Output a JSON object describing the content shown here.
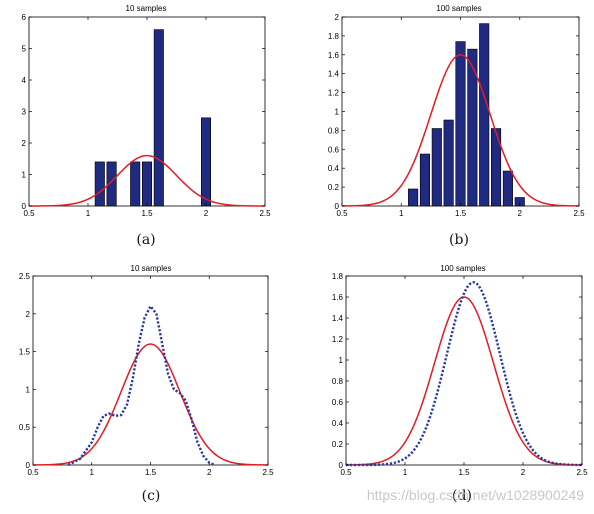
{
  "chart_data": [
    {
      "id": "a",
      "type": "bar",
      "title": "10 samples",
      "caption": "(a)",
      "xlim": [
        0.5,
        2.5
      ],
      "ylim": [
        0,
        6
      ],
      "xticks": [
        0.5,
        1,
        1.5,
        2,
        2.5
      ],
      "xtick_labels": [
        "0.5",
        "1",
        "1.5",
        "2",
        "2.5"
      ],
      "yticks": [
        0,
        1,
        2,
        3,
        4,
        5,
        6
      ],
      "ytick_labels": [
        "0",
        "1",
        "2",
        "3",
        "4",
        "5",
        "6"
      ],
      "bar_width": 0.08,
      "bars": {
        "x": [
          1.1,
          1.2,
          1.4,
          1.5,
          1.6,
          2.0
        ],
        "values": [
          1.4,
          1.4,
          1.4,
          1.4,
          5.6,
          2.8
        ]
      },
      "series": [
        {
          "type": "line",
          "style": "solid",
          "color": "#e31b23",
          "curve": {
            "kind": "gaussian",
            "mean": 1.5,
            "sd": 0.25,
            "peak": 1.6
          }
        }
      ],
      "grid": false,
      "bar_color": "#1f2a80"
    },
    {
      "id": "b",
      "type": "bar",
      "title": "100 samples",
      "caption": "(b)",
      "xlim": [
        0.5,
        2.5
      ],
      "ylim": [
        0,
        2
      ],
      "xticks": [
        0.5,
        1,
        1.5,
        2,
        2.5
      ],
      "xtick_labels": [
        "0.5",
        "1",
        "1.5",
        "2",
        "2.5"
      ],
      "yticks": [
        0,
        0.2,
        0.4,
        0.6,
        0.8,
        1,
        1.2,
        1.4,
        1.6,
        1.8,
        2
      ],
      "ytick_labels": [
        "0",
        "0.2",
        "0.4",
        "0.6",
        "0.8",
        "1",
        "1.2",
        "1.4",
        "1.6",
        "1.8",
        "2"
      ],
      "bar_width": 0.08,
      "bars": {
        "x": [
          1.1,
          1.2,
          1.3,
          1.4,
          1.5,
          1.6,
          1.7,
          1.8,
          1.9,
          2.0
        ],
        "values": [
          0.18,
          0.55,
          0.82,
          0.91,
          1.74,
          1.66,
          1.93,
          0.82,
          0.37,
          0.09
        ]
      },
      "series": [
        {
          "type": "line",
          "style": "solid",
          "color": "#e31b23",
          "curve": {
            "kind": "gaussian",
            "mean": 1.5,
            "sd": 0.25,
            "peak": 1.6
          }
        }
      ],
      "grid": false,
      "bar_color": "#1f2a80"
    },
    {
      "id": "c",
      "type": "line",
      "title": "10 samples",
      "caption": "(c)",
      "xlim": [
        0.5,
        2.5
      ],
      "ylim": [
        0,
        2.5
      ],
      "xticks": [
        0.5,
        1,
        1.5,
        2,
        2.5
      ],
      "xtick_labels": [
        "0.5",
        "1",
        "1.5",
        "2",
        "2.5"
      ],
      "yticks": [
        0,
        0.5,
        1,
        1.5,
        2,
        2.5
      ],
      "ytick_labels": [
        "0",
        "0.5",
        "1",
        "1.5",
        "2",
        "2.5"
      ],
      "series": [
        {
          "type": "line",
          "style": "solid",
          "color": "#e31b23",
          "curve": {
            "kind": "gaussian",
            "mean": 1.5,
            "sd": 0.25,
            "peak": 1.6
          }
        },
        {
          "type": "line",
          "style": "dotted",
          "color": "#2a3a9a",
          "x": [
            0.8,
            0.9,
            1.0,
            1.05,
            1.1,
            1.15,
            1.2,
            1.25,
            1.3,
            1.35,
            1.4,
            1.45,
            1.5,
            1.55,
            1.6,
            1.65,
            1.7,
            1.75,
            1.8,
            1.85,
            1.9,
            1.95,
            2.0,
            2.05
          ],
          "y": [
            0.0,
            0.08,
            0.3,
            0.5,
            0.65,
            0.68,
            0.65,
            0.66,
            0.8,
            1.15,
            1.6,
            1.95,
            2.1,
            2.0,
            1.6,
            1.2,
            1.0,
            0.95,
            0.85,
            0.6,
            0.3,
            0.12,
            0.03,
            0.0
          ]
        }
      ],
      "grid": false
    },
    {
      "id": "d",
      "type": "line",
      "title": "100 samples",
      "caption": "(d)",
      "xlim": [
        0.5,
        2.5
      ],
      "ylim": [
        0,
        1.8
      ],
      "xticks": [
        0.5,
        1,
        1.5,
        2,
        2.5
      ],
      "xtick_labels": [
        "0.5",
        "1",
        "1.5",
        "2",
        "2.5"
      ],
      "yticks": [
        0,
        0.2,
        0.4,
        0.6,
        0.8,
        1,
        1.2,
        1.4,
        1.6,
        1.8
      ],
      "ytick_labels": [
        "0",
        "0.2",
        "0.4",
        "0.6",
        "0.8",
        "1",
        "1.2",
        "1.4",
        "1.6",
        "1.8"
      ],
      "series": [
        {
          "type": "line",
          "style": "solid",
          "color": "#e31b23",
          "curve": {
            "kind": "gaussian",
            "mean": 1.5,
            "sd": 0.25,
            "peak": 1.6
          }
        },
        {
          "type": "line",
          "style": "dotted",
          "color": "#2a3a9a",
          "curve": {
            "kind": "gaussian",
            "mean": 1.58,
            "sd": 0.225,
            "peak": 1.74
          }
        }
      ],
      "grid": false
    }
  ],
  "watermark": "https://blog.csdn.net/w1028900249"
}
